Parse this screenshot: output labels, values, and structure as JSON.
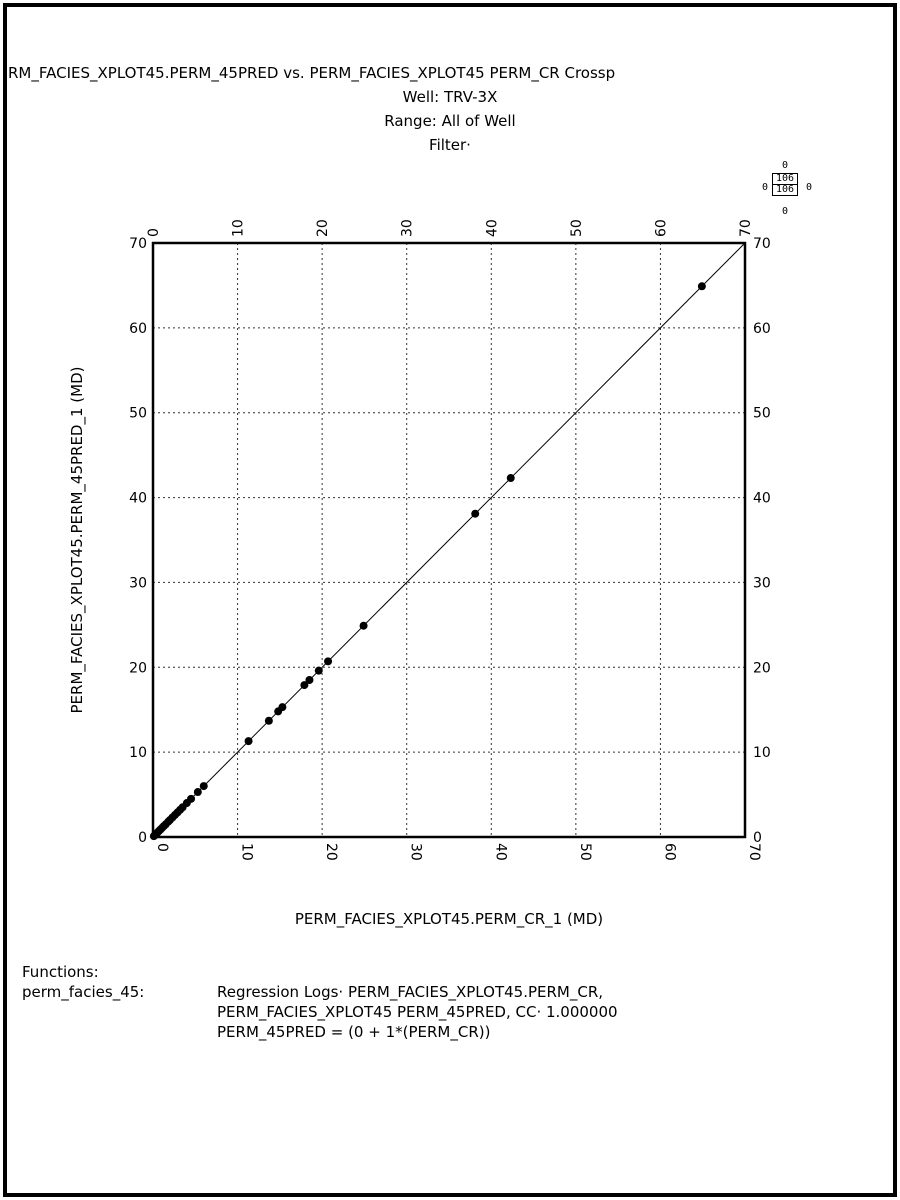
{
  "header": {
    "title": "RM_FACIES_XPLOT45.PERM_45PRED vs. PERM_FACIES_XPLOT45 PERM_CR Crossp",
    "well": "Well: TRV-3X",
    "range": "Range: All of Well",
    "filter": "Filter·"
  },
  "legend_box": {
    "top": "0",
    "bottom": "0",
    "left": "0",
    "right": "0",
    "upper": "106",
    "lower": "106"
  },
  "chart_data": {
    "type": "scatter",
    "xlabel": "PERM_FACIES_XPLOT45.PERM_CR_1 (MD)",
    "ylabel": "PERM_FACIES_XPLOT45.PERM_45PRED_1 (MD)",
    "xlim": [
      0,
      70
    ],
    "ylim": [
      0,
      70
    ],
    "x_ticks": [
      "0",
      "10",
      "20",
      "30",
      "40",
      "50",
      "60",
      "70"
    ],
    "y_ticks": [
      "0",
      "10",
      "20",
      "30",
      "40",
      "50",
      "60",
      "70"
    ],
    "grid": true,
    "regression_line": {
      "intercept": 0,
      "slope": 1
    },
    "points": [
      [
        0.1,
        0.1
      ],
      [
        0.2,
        0.2
      ],
      [
        0.3,
        0.3
      ],
      [
        0.5,
        0.5
      ],
      [
        0.7,
        0.7
      ],
      [
        0.9,
        0.9
      ],
      [
        1.1,
        1.1
      ],
      [
        1.3,
        1.3
      ],
      [
        1.5,
        1.5
      ],
      [
        1.8,
        1.8
      ],
      [
        2.0,
        2.0
      ],
      [
        2.3,
        2.3
      ],
      [
        2.6,
        2.6
      ],
      [
        2.9,
        2.9
      ],
      [
        3.2,
        3.2
      ],
      [
        3.5,
        3.5
      ],
      [
        4.0,
        4.0
      ],
      [
        4.5,
        4.5
      ],
      [
        5.3,
        5.3
      ],
      [
        6.0,
        6.0
      ],
      [
        11.3,
        11.3
      ],
      [
        13.7,
        13.7
      ],
      [
        14.8,
        14.8
      ],
      [
        15.3,
        15.3
      ],
      [
        17.9,
        17.9
      ],
      [
        18.5,
        18.5
      ],
      [
        19.6,
        19.6
      ],
      [
        20.7,
        20.7
      ],
      [
        24.9,
        24.9
      ],
      [
        38.1,
        38.1
      ],
      [
        42.3,
        42.3
      ],
      [
        64.9,
        64.9
      ]
    ]
  },
  "functions": {
    "heading": "Functions:",
    "name": "perm_facies_45:",
    "lines": [
      "Regression Logs· PERM_FACIES_XPLOT45.PERM_CR,",
      "PERM_FACIES_XPLOT45 PERM_45PRED, CC· 1.000000",
      "PERM_45PRED = (0 + 1*(PERM_CR))"
    ]
  }
}
